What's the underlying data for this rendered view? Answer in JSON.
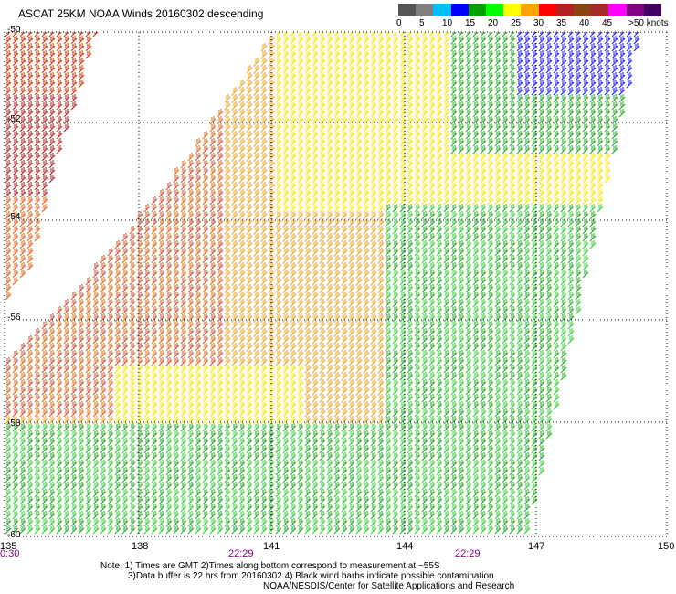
{
  "title": "ASCAT 25KM NOAA Winds 20160302 descending",
  "legend": {
    "labels": [
      "0",
      "5",
      "10",
      "15",
      "20",
      "25",
      "30",
      "35",
      "40",
      "45"
    ],
    "unit": ">50 knots",
    "colors": [
      "#555555",
      "#7f7f7f",
      "#00bfff",
      "#0000ff",
      "#00a000",
      "#00ff00",
      "#ffff00",
      "#ffa500",
      "#ff0000",
      "#b22222",
      "#8b4513",
      "#a52a2a",
      "#ff00ff",
      "#800080",
      "#400060"
    ]
  },
  "axes": {
    "lat_labels": [
      "-50",
      "-52",
      "-54",
      "-56",
      "-58",
      "-60"
    ],
    "lon_labels": [
      "135",
      "138",
      "141",
      "144",
      "147",
      "150"
    ],
    "time_labels": [
      "0:30",
      "22:29",
      "22:29"
    ]
  },
  "notes": [
    "Note: 1) Times are GMT 2)Times along bottom correspond to measurement at ~55S",
    "3)Data buffer is 22 hrs from 20160302 4) Black wind barbs indicate possible contamination",
    "NOAA/NESDIS/Center for Satellite Applications and Research"
  ]
}
